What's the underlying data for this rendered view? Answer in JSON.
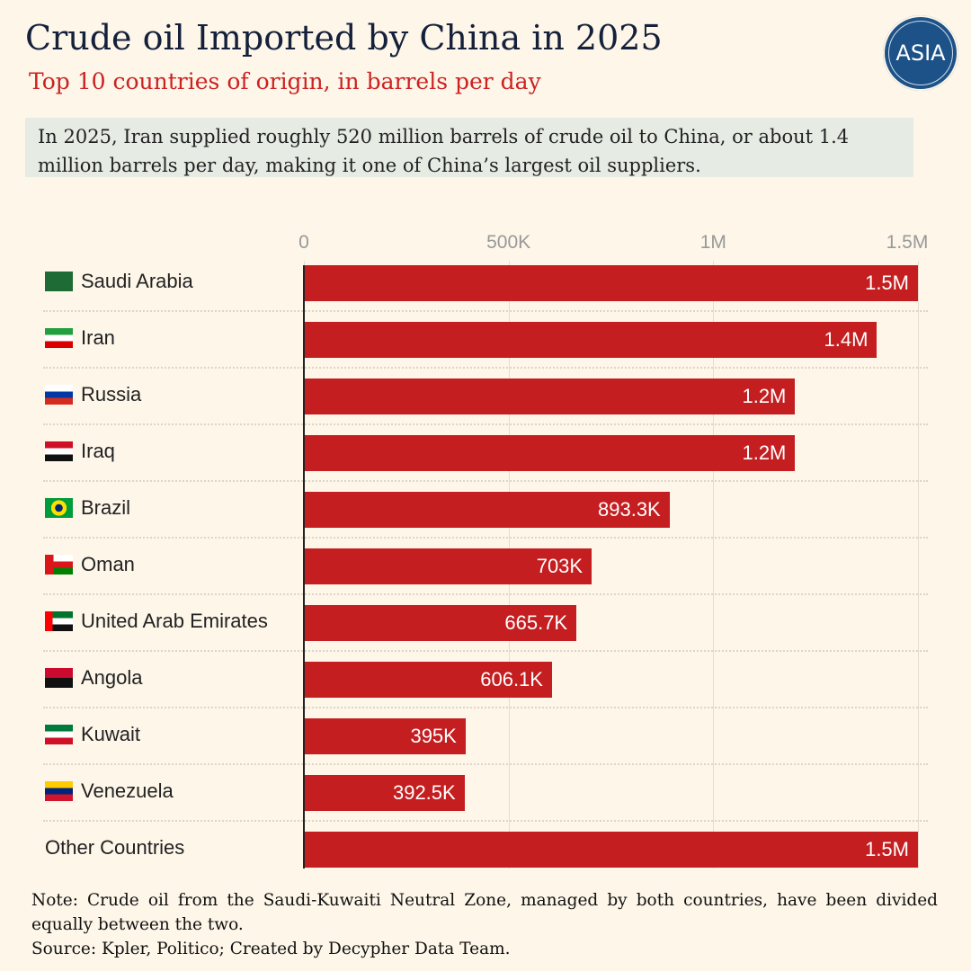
{
  "header": {
    "title": "Crude oil Imported by China in 2025",
    "subtitle": "Top 10 countries of origin, in barrels per day",
    "logo_text": "ASIA"
  },
  "callout": "In 2025, Iran supplied roughly 520 million barrels of crude oil to China, or about 1.4 million barrels per day, making it one of China’s largest oil suppliers.",
  "chart_data": {
    "type": "bar",
    "orientation": "horizontal",
    "title": "Crude oil Imported by China in 2025",
    "xlim": [
      0,
      1500000
    ],
    "ticks": [
      {
        "value": 0,
        "label": "0"
      },
      {
        "value": 500000,
        "label": "500K"
      },
      {
        "value": 1000000,
        "label": "1M"
      },
      {
        "value": 1500000,
        "label": "1.5M"
      }
    ],
    "color": "#c41e20",
    "categories": [
      "Saudi Arabia",
      "Iran",
      "Russia",
      "Iraq",
      "Brazil",
      "Oman",
      "United Arab Emirates",
      "Angola",
      "Kuwait",
      "Venezuela",
      "Other Countries"
    ],
    "values": [
      1500000,
      1400000,
      1200000,
      1200000,
      893300,
      703000,
      665700,
      606100,
      395000,
      392500,
      1500000
    ],
    "labels": [
      "1.5M",
      "1.4M",
      "1.2M",
      "1.2M",
      "893.3K",
      "703K",
      "665.7K",
      "606.1K",
      "395K",
      "392.5K",
      "1.5M"
    ],
    "flags": [
      "saudi-arabia",
      "iran",
      "russia",
      "iraq",
      "brazil",
      "oman",
      "uae",
      "angola",
      "kuwait",
      "venezuela",
      ""
    ]
  },
  "footer": {
    "note": "Note: Crude oil from the Saudi-Kuwaiti Neutral Zone, managed by both countries, have been divided equally between the two.",
    "source": "Source: Kpler, Politico; Created by Decypher Data Team."
  }
}
